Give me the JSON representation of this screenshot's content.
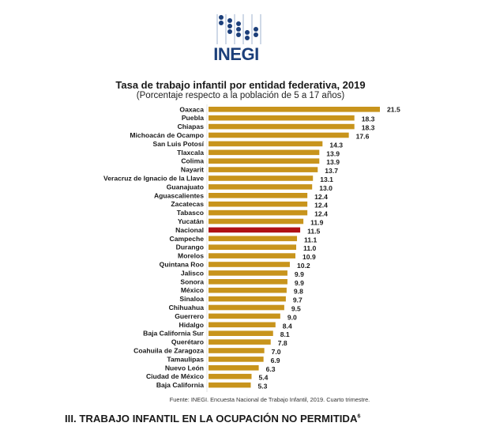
{
  "header": {
    "logo_text": "INEGI"
  },
  "chart_data": {
    "type": "bar",
    "orientation": "horizontal",
    "title": "Tasa de trabajo infantil por entidad federativa, 2019",
    "subtitle": "(Porcentaje respecto a la población de 5 a 17 años)",
    "xlabel": "",
    "ylabel": "",
    "xlim": [
      0,
      21.5
    ],
    "grid": false,
    "legend": "none",
    "colors": {
      "default": "#C8941C",
      "highlight": "#B01015"
    },
    "highlight_category": "Nacional",
    "categories": [
      "Oaxaca",
      "Puebla",
      "Chiapas",
      "Michoacán de Ocampo",
      "San Luis Potosí",
      "Tlaxcala",
      "Colima",
      "Nayarit",
      "Veracruz de Ignacio de la Llave",
      "Guanajuato",
      "Aguascalientes",
      "Zacatecas",
      "Tabasco",
      "Yucatán",
      "Nacional",
      "Campeche",
      "Durango",
      "Morelos",
      "Quintana Roo",
      "Jalisco",
      "Sonora",
      "México",
      "Sinaloa",
      "Chihuahua",
      "Guerrero",
      "Hidalgo",
      "Baja California Sur",
      "Querétaro",
      "Coahuila de Zaragoza",
      "Tamaulipas",
      "Nuevo León",
      "Ciudad de México",
      "Baja California"
    ],
    "values": [
      21.5,
      18.3,
      18.3,
      17.6,
      14.3,
      13.9,
      13.9,
      13.7,
      13.1,
      13.0,
      12.4,
      12.4,
      12.4,
      11.9,
      11.5,
      11.1,
      11.0,
      10.9,
      10.2,
      9.9,
      9.9,
      9.8,
      9.7,
      9.5,
      9.0,
      8.4,
      8.1,
      7.8,
      7.0,
      6.9,
      6.3,
      5.4,
      5.3
    ],
    "value_labels": [
      "21.5",
      "18.3",
      "18.3",
      "17.6",
      "14.3",
      "13.9",
      "13.9",
      "13.7",
      "13.1",
      "13.0",
      "12.4",
      "12.4",
      "12.4",
      "11.9",
      "11.5",
      "11.1",
      "11.0",
      "10.9",
      "10.2",
      "9.9",
      "9.9",
      "9.8",
      "9.7",
      "9.5",
      "9.0",
      "8.4",
      "8.1",
      "7.8",
      "7.0",
      "6.9",
      "6.3",
      "5.4",
      "5.3"
    ],
    "source": "Fuente: INEGI. Encuesta Nacional de Trabajo Infantil, 2019. Cuarto trimestre."
  },
  "section": {
    "heading": "III. TRABAJO INFANTIL EN LA OCUPACIÓN NO PERMITIDA",
    "footnote_marker": "6"
  }
}
